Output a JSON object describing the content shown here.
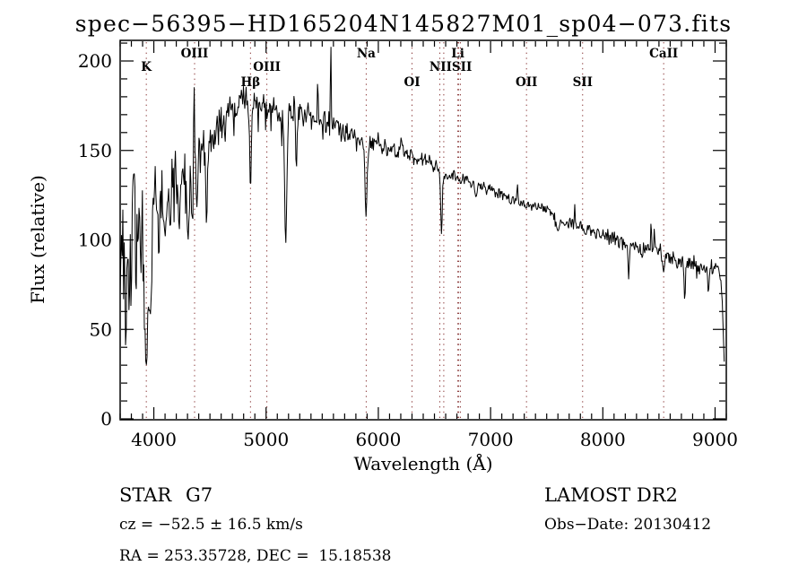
{
  "title": "spec−56395−HD165204N145827M01_sp04−073.fits",
  "chart_data": {
    "type": "line",
    "title": "spec−56395−HD165204N145827M01_sp04−073.fits",
    "xlabel": "Wavelength (Å)",
    "ylabel": "Flux (relative)",
    "xlim": [
      3700,
      9100
    ],
    "ylim": [
      0,
      211
    ],
    "x_ticks": [
      4000,
      5000,
      6000,
      7000,
      8000,
      9000
    ],
    "y_ticks": [
      0,
      50,
      100,
      150,
      200
    ],
    "x_minor_step": 100,
    "y_minor_step": 10,
    "grid": false,
    "legend": "none",
    "line_color": "#000000",
    "marker_line_color": "#8b3a3a",
    "series_name": "flux",
    "spectral_lines": [
      {
        "label": "K",
        "wavelengths": [
          3933
        ],
        "row": 2
      },
      {
        "label": "OIII",
        "wavelengths": [
          4363
        ],
        "row": 1
      },
      {
        "label": "Hβ",
        "wavelengths": [
          4861
        ],
        "row": 3
      },
      {
        "label": "OIII",
        "wavelengths": [
          5007
        ],
        "row": 2
      },
      {
        "label": "Na",
        "wavelengths": [
          5892
        ],
        "row": 1
      },
      {
        "label": "OI",
        "wavelengths": [
          6300
        ],
        "row": 3
      },
      {
        "label": "NIISII",
        "wavelengths": [
          6548,
          6583,
          6716,
          6731
        ],
        "row": 2
      },
      {
        "label": "Li",
        "wavelengths": [
          6708
        ],
        "row": 1
      },
      {
        "label": "OII",
        "wavelengths": [
          7320
        ],
        "row": 3
      },
      {
        "label": "SII",
        "wavelengths": [
          7820
        ],
        "row": 3
      },
      {
        "label": "CaII",
        "wavelengths": [
          8542
        ],
        "row": 1
      }
    ],
    "continuum": [
      [
        3700,
        100
      ],
      [
        3760,
        92
      ],
      [
        3820,
        108
      ],
      [
        3880,
        102
      ],
      [
        3930,
        85
      ],
      [
        3970,
        95
      ],
      [
        4000,
        118
      ],
      [
        4060,
        125
      ],
      [
        4120,
        128
      ],
      [
        4200,
        135
      ],
      [
        4280,
        140
      ],
      [
        4360,
        145
      ],
      [
        4440,
        152
      ],
      [
        4520,
        158
      ],
      [
        4600,
        166
      ],
      [
        4680,
        172
      ],
      [
        4760,
        176
      ],
      [
        4840,
        178
      ],
      [
        4920,
        176
      ],
      [
        5000,
        173
      ],
      [
        5080,
        174
      ],
      [
        5160,
        172
      ],
      [
        5240,
        174
      ],
      [
        5320,
        171
      ],
      [
        5400,
        168
      ],
      [
        5480,
        165
      ],
      [
        5560,
        166
      ],
      [
        5640,
        163
      ],
      [
        5720,
        160
      ],
      [
        5800,
        158
      ],
      [
        5900,
        154
      ],
      [
        6000,
        154
      ],
      [
        6100,
        150
      ],
      [
        6200,
        150
      ],
      [
        6300,
        147
      ],
      [
        6400,
        145
      ],
      [
        6500,
        142
      ],
      [
        6600,
        137
      ],
      [
        6700,
        135
      ],
      [
        6800,
        133
      ],
      [
        6900,
        130
      ],
      [
        7000,
        128
      ],
      [
        7100,
        126
      ],
      [
        7200,
        123
      ],
      [
        7300,
        120
      ],
      [
        7400,
        119
      ],
      [
        7500,
        118
      ],
      [
        7600,
        112
      ],
      [
        7700,
        110
      ],
      [
        7800,
        107
      ],
      [
        7900,
        105
      ],
      [
        8000,
        103
      ],
      [
        8100,
        101
      ],
      [
        8200,
        99
      ],
      [
        8300,
        97
      ],
      [
        8400,
        95
      ],
      [
        8500,
        93
      ],
      [
        8600,
        90
      ],
      [
        8700,
        88
      ],
      [
        8800,
        87
      ],
      [
        8900,
        85
      ],
      [
        9000,
        84
      ],
      [
        9040,
        83
      ],
      [
        9060,
        70
      ],
      [
        9075,
        45
      ],
      [
        9085,
        24
      ]
    ],
    "noise_amplitude": [
      [
        3700,
        38
      ],
      [
        3900,
        36
      ],
      [
        3980,
        25
      ],
      [
        4100,
        18
      ],
      [
        4300,
        14
      ],
      [
        4500,
        10
      ],
      [
        4700,
        8
      ],
      [
        5000,
        7
      ],
      [
        5400,
        7
      ],
      [
        5800,
        5
      ],
      [
        6200,
        4
      ],
      [
        6600,
        3.5
      ],
      [
        7000,
        3
      ],
      [
        7500,
        3
      ],
      [
        8000,
        3.5
      ],
      [
        8500,
        4
      ],
      [
        9000,
        4
      ],
      [
        9085,
        3
      ]
    ],
    "absorption_dips": [
      [
        3933,
        30,
        18
      ],
      [
        3968,
        58,
        14
      ],
      [
        4045,
        90,
        10
      ],
      [
        4101,
        102,
        12
      ],
      [
        4144,
        108,
        10
      ],
      [
        4226,
        105,
        10
      ],
      [
        4305,
        100,
        14
      ],
      [
        4340,
        112,
        12
      ],
      [
        4383,
        118,
        10
      ],
      [
        4470,
        108,
        10
      ],
      [
        4861,
        128,
        10
      ],
      [
        5175,
        98,
        14
      ],
      [
        5270,
        140,
        10
      ],
      [
        5890,
        113,
        12
      ],
      [
        6563,
        103,
        10
      ],
      [
        6870,
        124,
        14
      ],
      [
        7180,
        120,
        12
      ],
      [
        7600,
        105,
        20
      ],
      [
        7660,
        108,
        14
      ],
      [
        7850,
        103,
        12
      ],
      [
        8230,
        78,
        8
      ],
      [
        8350,
        90,
        8
      ],
      [
        8542,
        82,
        10
      ],
      [
        8660,
        84,
        8
      ],
      [
        8730,
        66,
        8
      ],
      [
        8940,
        70,
        8
      ]
    ],
    "emission_spikes": [
      [
        4358,
        193,
        5
      ],
      [
        5460,
        190,
        5
      ],
      [
        5577,
        210,
        5
      ],
      [
        6204,
        158,
        6
      ],
      [
        6248,
        148,
        5
      ],
      [
        6300,
        150,
        5
      ],
      [
        7240,
        131,
        5
      ],
      [
        7750,
        120,
        5
      ],
      [
        8430,
        112,
        5
      ],
      [
        8460,
        108,
        5
      ]
    ]
  },
  "annotations": {
    "class": "STAR",
    "subclass": "G7",
    "survey": "LAMOST DR2",
    "cz_line": "cz = −52.5 ± 16.5 km/s",
    "obs_date_line": "Obs−Date: 20130412",
    "radec_line": "RA = 253.35728, DEC =  15.18538"
  }
}
